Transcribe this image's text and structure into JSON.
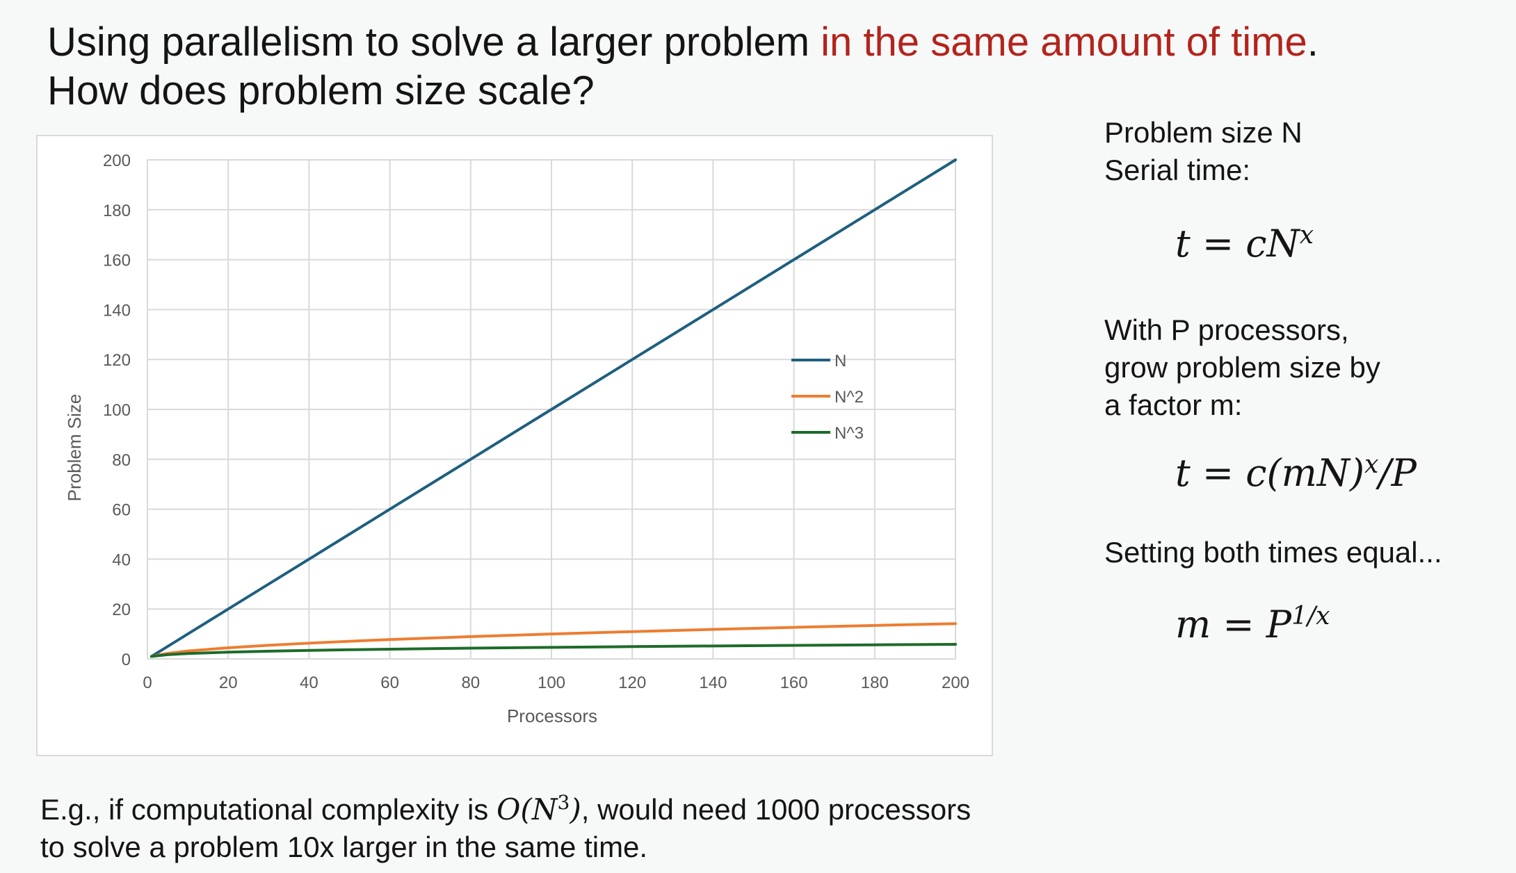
{
  "title": {
    "line1_prefix": "Using parallelism to solve a larger problem ",
    "line1_highlight": "in the same amount of time",
    "line1_suffix": ".",
    "line2": "How does problem size scale?",
    "highlight_color": "#b3241c"
  },
  "side": {
    "line1": "Problem size N",
    "line2": "Serial time:",
    "eq1_lhs": "t = cN",
    "eq1_sup": "x",
    "para2_line1": "With P processors,",
    "para2_line2": "grow problem size by",
    "para2_line3": "a factor m:",
    "eq2_lhs": "t = c(mN)",
    "eq2_sup": "x",
    "eq2_rhs": "/P",
    "line_setting": "Setting both times equal...",
    "eq3_lhs": "m = P",
    "eq3_sup": "1/x"
  },
  "bottom": {
    "prefix": "E.g., if computational complexity is ",
    "math_main": "O(N",
    "math_sup": "3",
    "math_close": ")",
    "line1_suffix": ", would need 1000 processors",
    "line2": "to solve a problem 10x larger in the same time."
  },
  "chart_data": {
    "type": "line",
    "xlabel": "Processors",
    "ylabel": "Problem Size",
    "xlim": [
      0,
      200
    ],
    "ylim": [
      0,
      200
    ],
    "xticks": [
      0,
      20,
      40,
      60,
      80,
      100,
      120,
      140,
      160,
      180,
      200
    ],
    "yticks": [
      0,
      20,
      40,
      60,
      80,
      100,
      120,
      140,
      160,
      180,
      200
    ],
    "grid": true,
    "legend_position": "center-right",
    "x": [
      1,
      5,
      10,
      20,
      30,
      40,
      50,
      60,
      80,
      100,
      120,
      140,
      160,
      180,
      200
    ],
    "series": [
      {
        "name": "N",
        "color": "#1f5f7f",
        "values": [
          1,
          5,
          10,
          20,
          30,
          40,
          50,
          60,
          80,
          100,
          120,
          140,
          160,
          180,
          200
        ]
      },
      {
        "name": "N^2",
        "color": "#ed7d31",
        "values": [
          1,
          2.24,
          3.16,
          4.47,
          5.48,
          6.32,
          7.07,
          7.75,
          8.94,
          10,
          10.95,
          11.83,
          12.65,
          13.42,
          14.14
        ]
      },
      {
        "name": "N^3",
        "color": "#1e6b2a",
        "values": [
          1,
          1.71,
          2.15,
          2.71,
          3.11,
          3.42,
          3.68,
          3.91,
          4.31,
          4.64,
          4.93,
          5.19,
          5.43,
          5.65,
          5.85
        ]
      }
    ]
  }
}
